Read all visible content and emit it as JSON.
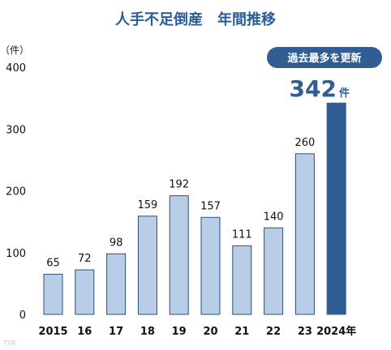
{
  "chart_data": {
    "type": "bar",
    "title": "人手不足倒産　年間推移",
    "ylabel": "（件）",
    "ylim": [
      0,
      400
    ],
    "yticks": [
      0,
      100,
      200,
      300,
      400
    ],
    "grid": false,
    "categories": [
      "2015",
      "16",
      "17",
      "18",
      "19",
      "20",
      "21",
      "22",
      "23",
      "2024年"
    ],
    "values": [
      65,
      72,
      98,
      159,
      192,
      157,
      111,
      140,
      260,
      342
    ],
    "highlight": {
      "index": 9,
      "value": "342",
      "unit": "件",
      "badge": "過去最多を更新"
    },
    "colors": {
      "bar": "#b8cde6",
      "bar_stroke": "#2a4f80",
      "highlight_bar": "#2f5d94",
      "title": "#2a5d9a",
      "badge": "#2f5d94"
    }
  },
  "watermark": "TSR"
}
